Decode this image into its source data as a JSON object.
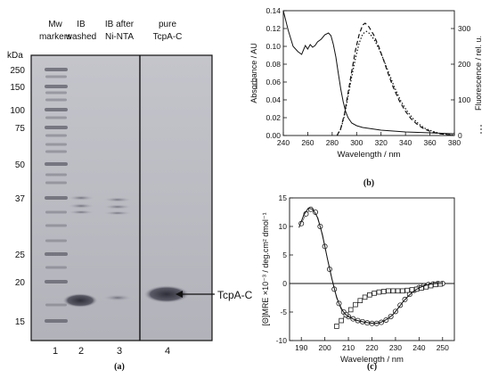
{
  "panel_a": {
    "caption": "(a)",
    "kda_label": "kDa",
    "headers": [
      {
        "lines": [
          "Mw",
          "markers"
        ]
      },
      {
        "lines": [
          "IB",
          "washed"
        ]
      },
      {
        "lines": [
          "IB after",
          "Ni-NTA"
        ]
      },
      {
        "lines": [
          "pure",
          "TcpA-C"
        ]
      }
    ],
    "marker_weights": [
      "250",
      "150",
      "100",
      "75",
      "50",
      "37",
      "25",
      "20",
      "15"
    ],
    "lane_numbers": [
      "1",
      "2",
      "3",
      "4"
    ],
    "band_arrow_label": "TcpA-C"
  },
  "chart_data": [
    {
      "id": "b",
      "type": "line",
      "caption": "(b)",
      "xlabel": "Wavelength / nm",
      "ylabel": "Absorbance / AU",
      "y2label": "Fluorescence / rel. u.",
      "xlim": [
        240,
        380
      ],
      "ylim": [
        0,
        0.14
      ],
      "y2lim": [
        0,
        350
      ],
      "xticks": [
        "240",
        "260",
        "280",
        "300",
        "320",
        "340",
        "360",
        "380"
      ],
      "yticks": [
        "0.00",
        "0.02",
        "0.04",
        "0.06",
        "0.08",
        "0.10",
        "0.12",
        "0.14"
      ],
      "y2ticks": [
        "0",
        "100",
        "200",
        "300"
      ],
      "series": [
        {
          "style": "solid",
          "axis": "left",
          "x": [
            240,
            244,
            248,
            252,
            255,
            258,
            260,
            262,
            264,
            266,
            268,
            271,
            274,
            277,
            279,
            281,
            283,
            285,
            287,
            289,
            291,
            293,
            296,
            300,
            305,
            310,
            320,
            330,
            340,
            360,
            380
          ],
          "y": [
            0.14,
            0.118,
            0.1,
            0.094,
            0.091,
            0.101,
            0.097,
            0.102,
            0.099,
            0.101,
            0.105,
            0.108,
            0.113,
            0.115,
            0.112,
            0.102,
            0.088,
            0.07,
            0.052,
            0.038,
            0.027,
            0.02,
            0.014,
            0.011,
            0.009,
            0.008,
            0.006,
            0.005,
            0.004,
            0.003,
            0.002
          ]
        },
        {
          "style": "dashed",
          "axis": "right",
          "x": [
            284,
            287,
            290,
            293,
            296,
            299,
            302,
            305,
            307,
            310,
            314,
            318,
            322,
            326,
            330,
            335,
            340,
            345,
            350,
            355,
            360,
            366,
            372,
            378
          ],
          "y": [
            0,
            20,
            60,
            120,
            180,
            238,
            282,
            310,
            315,
            305,
            282,
            250,
            212,
            172,
            135,
            97,
            68,
            45,
            30,
            19,
            12,
            6,
            3,
            1
          ]
        },
        {
          "style": "dotted",
          "axis": "right",
          "x": [
            284,
            287,
            290,
            293,
            296,
            299,
            302,
            305,
            308,
            311,
            315,
            319,
            323,
            327,
            331,
            336,
            341,
            346,
            351,
            356,
            362,
            368,
            374,
            380
          ],
          "y": [
            0,
            18,
            55,
            110,
            165,
            215,
            258,
            285,
            292,
            285,
            265,
            238,
            205,
            170,
            135,
            98,
            70,
            48,
            32,
            20,
            12,
            6,
            3,
            1
          ]
        }
      ]
    },
    {
      "id": "c",
      "type": "line",
      "caption": "(c)",
      "xlabel": "Wavelength / nm",
      "ylabel": "[Θ]MRE ×10⁻³ / deg.cm² dmol⁻¹",
      "xlim": [
        185,
        255
      ],
      "ylim": [
        -10,
        15
      ],
      "xticks": [
        "190",
        "200",
        "210",
        "220",
        "230",
        "240",
        "250"
      ],
      "yticks": [
        "-10",
        "-5",
        "0",
        "5",
        "10",
        "15"
      ],
      "series": [
        {
          "marker": "circle",
          "x": [
            190,
            192,
            194,
            196,
            198,
            200,
            202,
            204,
            206,
            208,
            210,
            212,
            214,
            216,
            218,
            220,
            222,
            224,
            226,
            228,
            230,
            232,
            234,
            236,
            238,
            240,
            242,
            244,
            246,
            248,
            250
          ],
          "y": [
            10.5,
            12.2,
            13.0,
            12.5,
            10.0,
            6.5,
            2.5,
            -1.0,
            -3.5,
            -5.0,
            -5.8,
            -6.2,
            -6.5,
            -6.7,
            -6.9,
            -7.0,
            -7.0,
            -6.8,
            -6.4,
            -5.8,
            -4.9,
            -3.8,
            -2.8,
            -1.9,
            -1.2,
            -0.7,
            -0.4,
            -0.2,
            -0.1,
            0.0,
            0.0
          ]
        },
        {
          "marker": "square",
          "x": [
            205,
            207,
            209,
            211,
            213,
            215,
            217,
            219,
            221,
            223,
            225,
            227,
            229,
            231,
            233,
            235,
            237,
            239,
            241,
            243,
            245,
            247,
            249
          ],
          "y": [
            -7.5,
            -6.5,
            -5.5,
            -4.6,
            -3.7,
            -3.0,
            -2.4,
            -2.0,
            -1.7,
            -1.5,
            -1.4,
            -1.3,
            -1.3,
            -1.3,
            -1.3,
            -1.2,
            -1.1,
            -1.0,
            -0.8,
            -0.6,
            -0.4,
            -0.2,
            -0.1
          ]
        },
        {
          "style": "solid",
          "x": [
            189,
            191,
            193,
            195,
            197,
            199,
            201,
            203,
            205,
            207,
            209,
            211,
            213,
            215,
            217,
            219,
            221,
            223,
            225,
            227,
            229,
            231,
            233,
            235,
            237,
            239,
            241,
            243,
            245,
            247,
            250
          ],
          "y": [
            9.8,
            12.0,
            13.2,
            13.0,
            11.5,
            8.5,
            4.5,
            0.8,
            -2.5,
            -4.5,
            -5.5,
            -6.0,
            -6.4,
            -6.6,
            -6.8,
            -6.9,
            -7.0,
            -6.9,
            -6.6,
            -6.1,
            -5.4,
            -4.4,
            -3.3,
            -2.4,
            -1.6,
            -1.0,
            -0.6,
            -0.3,
            -0.1,
            0.0,
            0.0
          ]
        }
      ]
    }
  ]
}
